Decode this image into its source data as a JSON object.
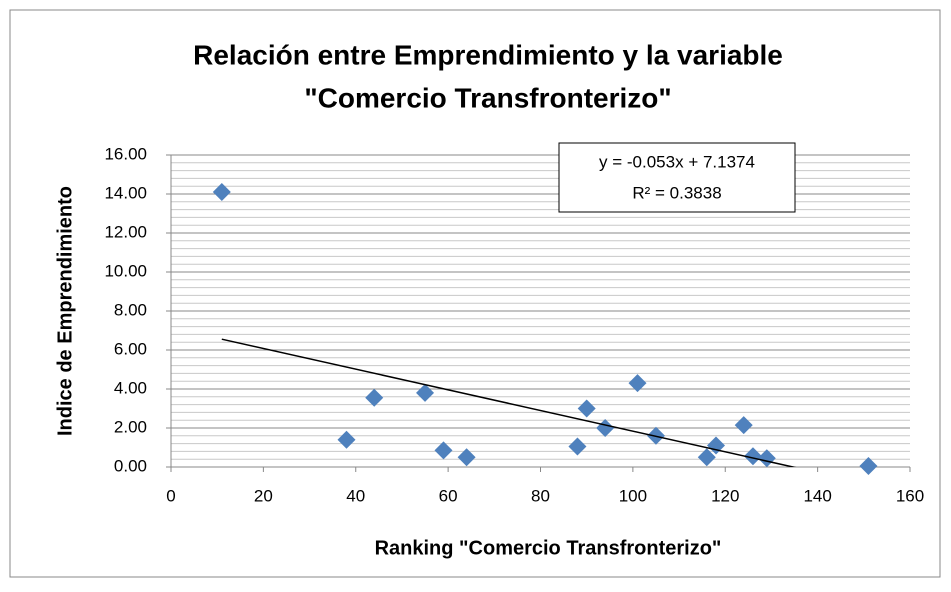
{
  "chart_data": {
    "type": "scatter",
    "title": [
      "Relación entre Emprendimiento y la variable",
      "\"Comercio Transfronterizo\""
    ],
    "x_label": "Ranking \"Comercio Transfronterizo\"",
    "y_label": "Indice de Emprendimiento",
    "series": [
      {
        "color": "#4f81bd",
        "x": [
          11,
          38,
          44,
          55,
          59,
          64,
          88,
          90,
          94,
          101,
          105,
          116,
          118,
          124,
          126,
          129,
          151
        ],
        "values": [
          14.1,
          1.4,
          3.55,
          3.8,
          0.85,
          0.5,
          1.05,
          3.0,
          2.0,
          4.3,
          1.6,
          0.5,
          1.1,
          2.15,
          0.55,
          0.45,
          0.05
        ]
      }
    ],
    "trendline": {
      "equation": "y = -0.053x + 7.1374",
      "r_squared": "R² = 0.3838",
      "slope": -0.053,
      "intercept": 7.1374,
      "x": [
        11,
        151
      ],
      "color": "#000000"
    },
    "xlim": [
      0,
      160
    ],
    "xticks": [
      0,
      20,
      40,
      60,
      80,
      100,
      120,
      140,
      160
    ],
    "ylim": [
      0,
      16
    ],
    "yticks": [
      {
        "value": 0,
        "label": "0.00"
      },
      {
        "value": 2,
        "label": "2.00"
      },
      {
        "value": 4,
        "label": "4.00"
      },
      {
        "value": 6,
        "label": "6.00"
      },
      {
        "value": 8,
        "label": "8.00"
      },
      {
        "value": 10,
        "label": "10.00"
      },
      {
        "value": 12,
        "label": "12.00"
      },
      {
        "value": 14,
        "label": "14.00"
      },
      {
        "value": 16,
        "label": "16.00"
      }
    ],
    "grid": true,
    "minor_grid": true
  }
}
